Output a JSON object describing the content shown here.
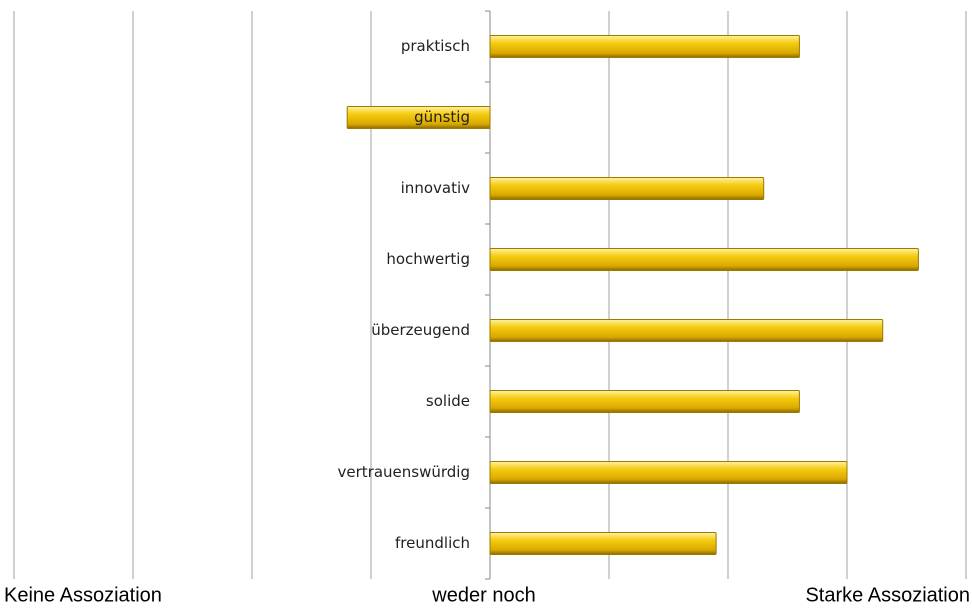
{
  "chart_data": {
    "type": "barh",
    "categories": [
      "praktisch",
      "günstig",
      "innovativ",
      "hochwertig",
      "überzeugend",
      "solide",
      "vertrauenswürdig",
      "freundlich"
    ],
    "values": [
      2.6,
      -1.2,
      2.3,
      3.6,
      3.3,
      2.6,
      3.0,
      1.9
    ],
    "color": "#f2c200",
    "xlim": [
      -4,
      4
    ],
    "xticks": [
      {
        "value": -4,
        "label": "Keine Assoziation"
      },
      {
        "value": 0,
        "label": "weder noch"
      },
      {
        "value": 4,
        "label": "Starke Assoziation"
      }
    ],
    "minor_xticks": [
      -3,
      -2,
      -1,
      1,
      2,
      3
    ],
    "grid": true
  }
}
